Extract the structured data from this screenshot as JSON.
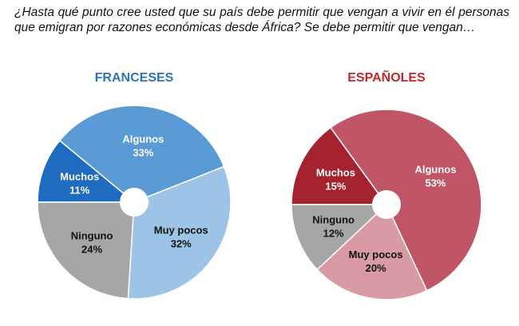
{
  "question": "¿Hasta qué punto cree usted que su país debe permitir que vengan a vivir en él personas que emigran por razones económicas desde África? Se debe permitir que vengan…",
  "charts": {
    "fr": {
      "title": "FRANCESES"
    },
    "es": {
      "title": "ESPAÑOLES"
    }
  },
  "chart_data": [
    {
      "type": "pie",
      "title": "FRANCESES",
      "categories": [
        "Muchos",
        "Algunos",
        "Muy pocos",
        "Ninguno"
      ],
      "values": [
        11,
        33,
        32,
        24
      ],
      "labels": [
        "11%",
        "33%",
        "32%",
        "24%"
      ],
      "colors": [
        "#1F6BBF",
        "#5B9BD5",
        "#9DC3E6",
        "#A6A6A6"
      ],
      "label_colors": [
        "#ffffff",
        "#ffffff",
        "#111111",
        "#111111"
      ]
    },
    {
      "type": "pie",
      "title": "ESPAÑOLES",
      "categories": [
        "Muchos",
        "Algunos",
        "Muy pocos",
        "Ninguno"
      ],
      "values": [
        15,
        53,
        20,
        12
      ],
      "labels": [
        "15%",
        "53%",
        "20%",
        "12%"
      ],
      "colors": [
        "#A5232E",
        "#C05566",
        "#D99AA5",
        "#A6A6A6"
      ],
      "label_colors": [
        "#ffffff",
        "#ffffff",
        "#111111",
        "#111111"
      ]
    }
  ]
}
